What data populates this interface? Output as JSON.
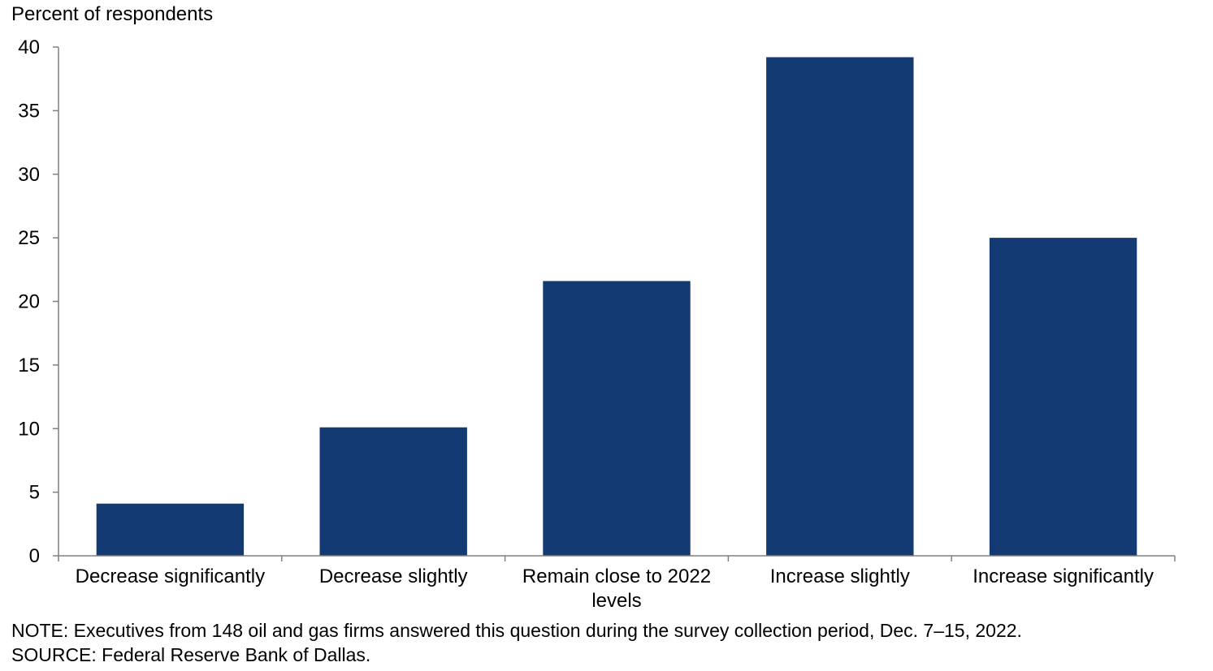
{
  "chart_data": {
    "type": "bar",
    "ylabel": "Percent of respondents",
    "categories": [
      [
        "Decrease significantly"
      ],
      [
        "Decrease slightly"
      ],
      [
        "Remain close to 2022",
        "levels"
      ],
      [
        "Increase slightly"
      ],
      [
        "Increase significantly"
      ]
    ],
    "values": [
      4.1,
      10.1,
      21.6,
      39.2,
      25.0
    ],
    "ylim": [
      0,
      40
    ],
    "yticks": [
      "0",
      "5",
      "10",
      "15",
      "20",
      "25",
      "30",
      "35",
      "40"
    ],
    "grid": false,
    "bar_color": "#143a73"
  },
  "notes": {
    "note": "NOTE: Executives from 148 oil and gas firms answered this question during the survey collection period, Dec. 7–15, 2022.",
    "source": "SOURCE: Federal Reserve Bank of Dallas."
  }
}
